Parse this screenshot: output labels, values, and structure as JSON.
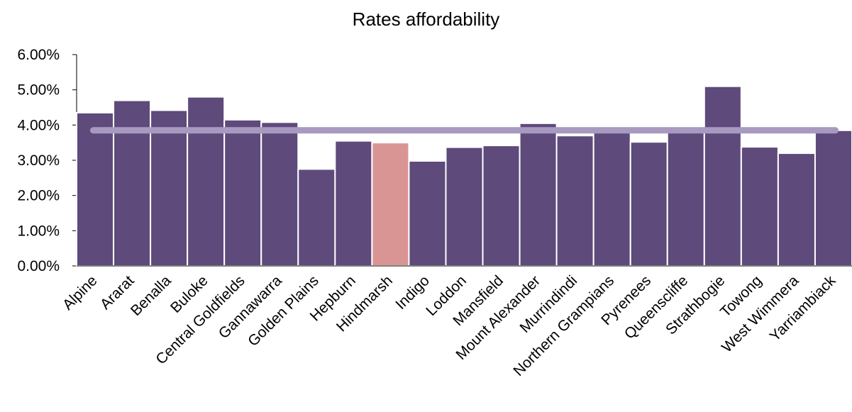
{
  "chart_data": {
    "type": "bar",
    "title": "Rates affordability",
    "xlabel": "",
    "ylabel": "",
    "ylim": [
      0,
      0.06
    ],
    "yticks": [
      "0.00%",
      "1.00%",
      "2.00%",
      "3.00%",
      "4.00%",
      "5.00%",
      "6.00%"
    ],
    "categories": [
      "Alpine",
      "Ararat",
      "Benalla",
      "Buloke",
      "Central Goldfields",
      "Gannawarra",
      "Golden Plains",
      "Hepburn",
      "Hindmarsh",
      "Indigo",
      "Loddon",
      "Mansfield",
      "Mount Alexander",
      "Murrindindi",
      "Northern Grampians",
      "Pyrenees",
      "Queenscliffe",
      "Strathbogie",
      "Towong",
      "West Wimmera",
      "Yarriambiack"
    ],
    "values": [
      0.0435,
      0.047,
      0.0442,
      0.048,
      0.0415,
      0.0408,
      0.0275,
      0.0355,
      0.035,
      0.0298,
      0.0337,
      0.0342,
      0.0405,
      0.037,
      0.0385,
      0.0352,
      0.0385,
      0.051,
      0.0338,
      0.032,
      0.0385
    ],
    "average_line": 0.0385,
    "highlight_category": "Hindmarsh",
    "colors": {
      "bar": "#5e4a7b",
      "highlight": "#d99594",
      "average_line": "#a899c1",
      "axis": "#000000"
    },
    "grid": false,
    "legend": "none"
  }
}
